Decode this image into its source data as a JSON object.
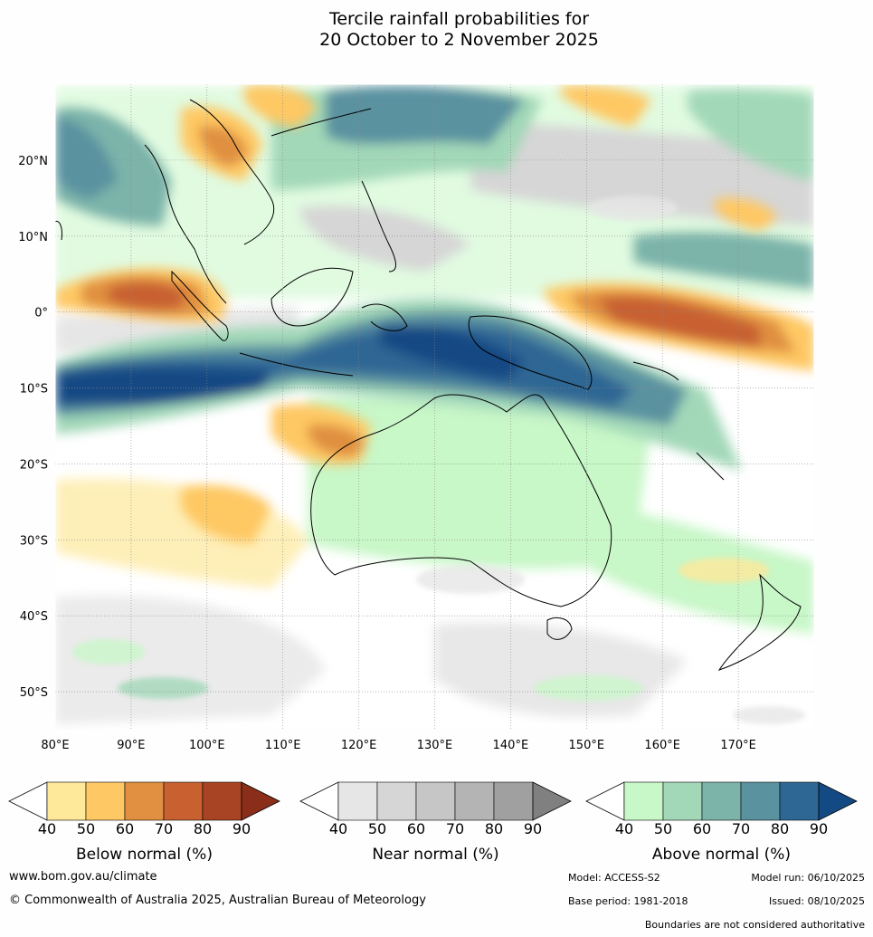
{
  "title": {
    "line1": "Tercile rainfall probabilities for",
    "line2": "20 October to 2 November 2025"
  },
  "map": {
    "lon_ticks": [
      "80°E",
      "90°E",
      "100°E",
      "110°E",
      "120°E",
      "130°E",
      "140°E",
      "150°E",
      "160°E",
      "170°E"
    ],
    "lon_values": [
      80,
      90,
      100,
      110,
      120,
      130,
      140,
      150,
      160,
      170
    ],
    "lat_ticks": [
      "20°N",
      "10°N",
      "0°",
      "10°S",
      "20°S",
      "30°S",
      "40°S",
      "50°S"
    ],
    "lat_values": [
      20,
      10,
      0,
      -10,
      -20,
      -30,
      -40,
      -50
    ],
    "extent": {
      "lon_min": 80,
      "lon_max": 180,
      "lat_min": -55,
      "lat_max": 30
    }
  },
  "colorbars": [
    {
      "id": "below",
      "title": "Below normal (%)",
      "ticks": [
        "40",
        "50",
        "60",
        "70",
        "80",
        "90"
      ],
      "colors": [
        "#ffffff",
        "#fee89a",
        "#fec864",
        "#e09040",
        "#c86030",
        "#a84424",
        "#8a2e1a"
      ]
    },
    {
      "id": "near",
      "title": "Near normal (%)",
      "ticks": [
        "40",
        "50",
        "60",
        "70",
        "80",
        "90"
      ],
      "colors": [
        "#ffffff",
        "#e6e6e6",
        "#d6d6d6",
        "#c6c6c6",
        "#b4b4b4",
        "#a0a0a0",
        "#808080"
      ]
    },
    {
      "id": "above",
      "title": "Above normal (%)",
      "ticks": [
        "40",
        "50",
        "60",
        "70",
        "80",
        "90"
      ],
      "colors": [
        "#ffffff",
        "#c8f7c8",
        "#a2d8b8",
        "#7cb4aa",
        "#5a92a0",
        "#2e6694",
        "#144a84"
      ]
    }
  ],
  "footer": {
    "website": "www.bom.gov.au/climate",
    "copyright": "© Commonwealth of Australia 2025, Australian Bureau of Meteorology",
    "model": "Model: ACCESS-S2",
    "model_run": "Model run: 06/10/2025",
    "base_period": "Base period: 1981-2018",
    "issued": "Issued: 08/10/2025",
    "disclaimer": "Boundaries are not considered authoritative"
  }
}
